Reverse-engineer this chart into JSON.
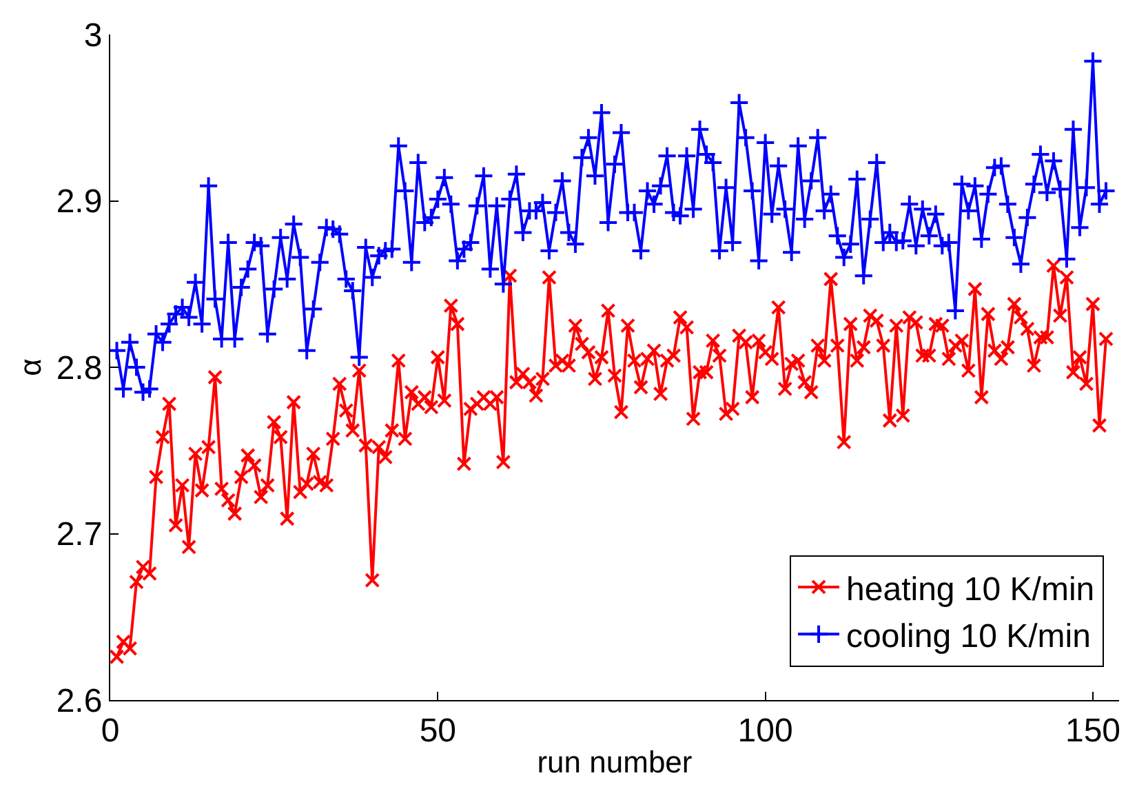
{
  "chart_data": {
    "type": "line",
    "xlabel": "run number",
    "ylabel": "α",
    "xlim": [
      0,
      154
    ],
    "xticks": [
      0,
      50,
      100,
      150
    ],
    "ylim": [
      2.6,
      3
    ],
    "yticks": [
      2.6,
      2.7,
      2.8,
      2.9,
      3
    ],
    "legend": "bottom right",
    "line_style": "solid",
    "x": [
      1,
      2,
      3,
      4,
      5,
      6,
      7,
      8,
      9,
      10,
      11,
      12,
      13,
      14,
      15,
      16,
      17,
      18,
      19,
      20,
      21,
      22,
      23,
      24,
      25,
      26,
      27,
      28,
      29,
      30,
      31,
      32,
      33,
      34,
      35,
      36,
      37,
      38,
      39,
      40,
      41,
      42,
      43,
      44,
      45,
      46,
      47,
      48,
      49,
      50,
      51,
      52,
      53,
      54,
      55,
      56,
      57,
      58,
      59,
      60,
      61,
      62,
      63,
      64,
      65,
      66,
      67,
      68,
      69,
      70,
      71,
      72,
      73,
      74,
      75,
      76,
      77,
      78,
      79,
      80,
      81,
      82,
      83,
      84,
      85,
      86,
      87,
      88,
      89,
      90,
      91,
      92,
      93,
      94,
      95,
      96,
      97,
      98,
      99,
      100,
      101,
      102,
      103,
      104,
      105,
      106,
      107,
      108,
      109,
      110,
      111,
      112,
      113,
      114,
      115,
      116,
      117,
      118,
      119,
      120,
      121,
      122,
      123,
      124,
      125,
      126,
      127,
      128,
      129,
      130,
      131,
      132,
      133,
      134,
      135,
      136,
      137,
      138,
      139,
      140,
      141,
      142,
      143,
      144,
      145,
      146,
      147,
      148,
      149,
      150,
      151,
      152
    ],
    "series": [
      {
        "name": "heating 10 K/min",
        "color": "#ff0000",
        "marker": "x",
        "values": [
          2.626,
          2.635,
          2.631,
          2.671,
          2.68,
          2.676,
          2.734,
          2.758,
          2.778,
          2.705,
          2.729,
          2.692,
          2.748,
          2.726,
          2.752,
          2.794,
          2.727,
          2.72,
          2.712,
          2.734,
          2.747,
          2.741,
          2.722,
          2.729,
          2.767,
          2.758,
          2.709,
          2.779,
          2.725,
          2.73,
          2.748,
          2.731,
          2.729,
          2.757,
          2.79,
          2.774,
          2.762,
          2.798,
          2.753,
          2.672,
          2.752,
          2.746,
          2.762,
          2.804,
          2.757,
          2.785,
          2.778,
          2.782,
          2.776,
          2.806,
          2.78,
          2.837,
          2.826,
          2.742,
          2.775,
          2.778,
          2.782,
          2.778,
          2.782,
          2.743,
          2.855,
          2.791,
          2.796,
          2.791,
          2.783,
          2.793,
          2.854,
          2.801,
          2.804,
          2.801,
          2.825,
          2.814,
          2.809,
          2.793,
          2.806,
          2.834,
          2.795,
          2.773,
          2.825,
          2.804,
          2.788,
          2.805,
          2.81,
          2.784,
          2.804,
          2.807,
          2.83,
          2.824,
          2.769,
          2.797,
          2.797,
          2.816,
          2.807,
          2.772,
          2.775,
          2.819,
          2.815,
          2.782,
          2.816,
          2.809,
          2.805,
          2.836,
          2.787,
          2.802,
          2.804,
          2.791,
          2.785,
          2.813,
          2.804,
          2.853,
          2.813,
          2.755,
          2.826,
          2.804,
          2.812,
          2.831,
          2.828,
          2.813,
          2.768,
          2.825,
          2.771,
          2.83,
          2.827,
          2.807,
          2.807,
          2.826,
          2.825,
          2.805,
          2.813,
          2.816,
          2.798,
          2.847,
          2.782,
          2.832,
          2.81,
          2.805,
          2.812,
          2.838,
          2.83,
          2.823,
          2.801,
          2.818,
          2.818,
          2.861,
          2.831,
          2.854,
          2.797,
          2.806,
          2.79,
          2.838,
          2.765,
          2.817
        ]
      },
      {
        "name": "cooling 10 K/min",
        "color": "#0000ff",
        "marker": "cross",
        "values": [
          2.81,
          2.787,
          2.815,
          2.8,
          2.785,
          2.787,
          2.82,
          2.815,
          2.826,
          2.832,
          2.836,
          2.83,
          2.851,
          2.826,
          2.909,
          2.841,
          2.817,
          2.875,
          2.817,
          2.848,
          2.859,
          2.875,
          2.873,
          2.82,
          2.847,
          2.878,
          2.853,
          2.886,
          2.866,
          2.81,
          2.835,
          2.863,
          2.884,
          2.883,
          2.88,
          2.853,
          2.846,
          2.806,
          2.872,
          2.854,
          2.867,
          2.87,
          2.871,
          2.933,
          2.906,
          2.863,
          2.923,
          2.887,
          2.89,
          2.901,
          2.914,
          2.898,
          2.864,
          2.871,
          2.875,
          2.897,
          2.915,
          2.859,
          2.897,
          2.85,
          2.901,
          2.916,
          2.881,
          2.894,
          2.894,
          2.899,
          2.87,
          2.893,
          2.912,
          2.881,
          2.874,
          2.926,
          2.938,
          2.915,
          2.953,
          2.887,
          2.922,
          2.941,
          2.893,
          2.893,
          2.87,
          2.906,
          2.898,
          2.909,
          2.927,
          2.893,
          2.891,
          2.927,
          2.895,
          2.943,
          2.928,
          2.923,
          2.87,
          2.908,
          2.875,
          2.959,
          2.938,
          2.906,
          2.864,
          2.935,
          2.892,
          2.921,
          2.895,
          2.869,
          2.933,
          2.889,
          2.912,
          2.938,
          2.894,
          2.904,
          2.879,
          2.866,
          2.874,
          2.913,
          2.855,
          2.889,
          2.923,
          2.875,
          2.881,
          2.875,
          2.876,
          2.898,
          2.873,
          2.895,
          2.879,
          2.892,
          2.873,
          2.875,
          2.834,
          2.91,
          2.894,
          2.909,
          2.877,
          2.904,
          2.92,
          2.921,
          2.898,
          2.878,
          2.862,
          2.89,
          2.91,
          2.928,
          2.905,
          2.924,
          2.907,
          2.865,
          2.943,
          2.884,
          2.908,
          2.984,
          2.898,
          2.906
        ]
      }
    ]
  }
}
